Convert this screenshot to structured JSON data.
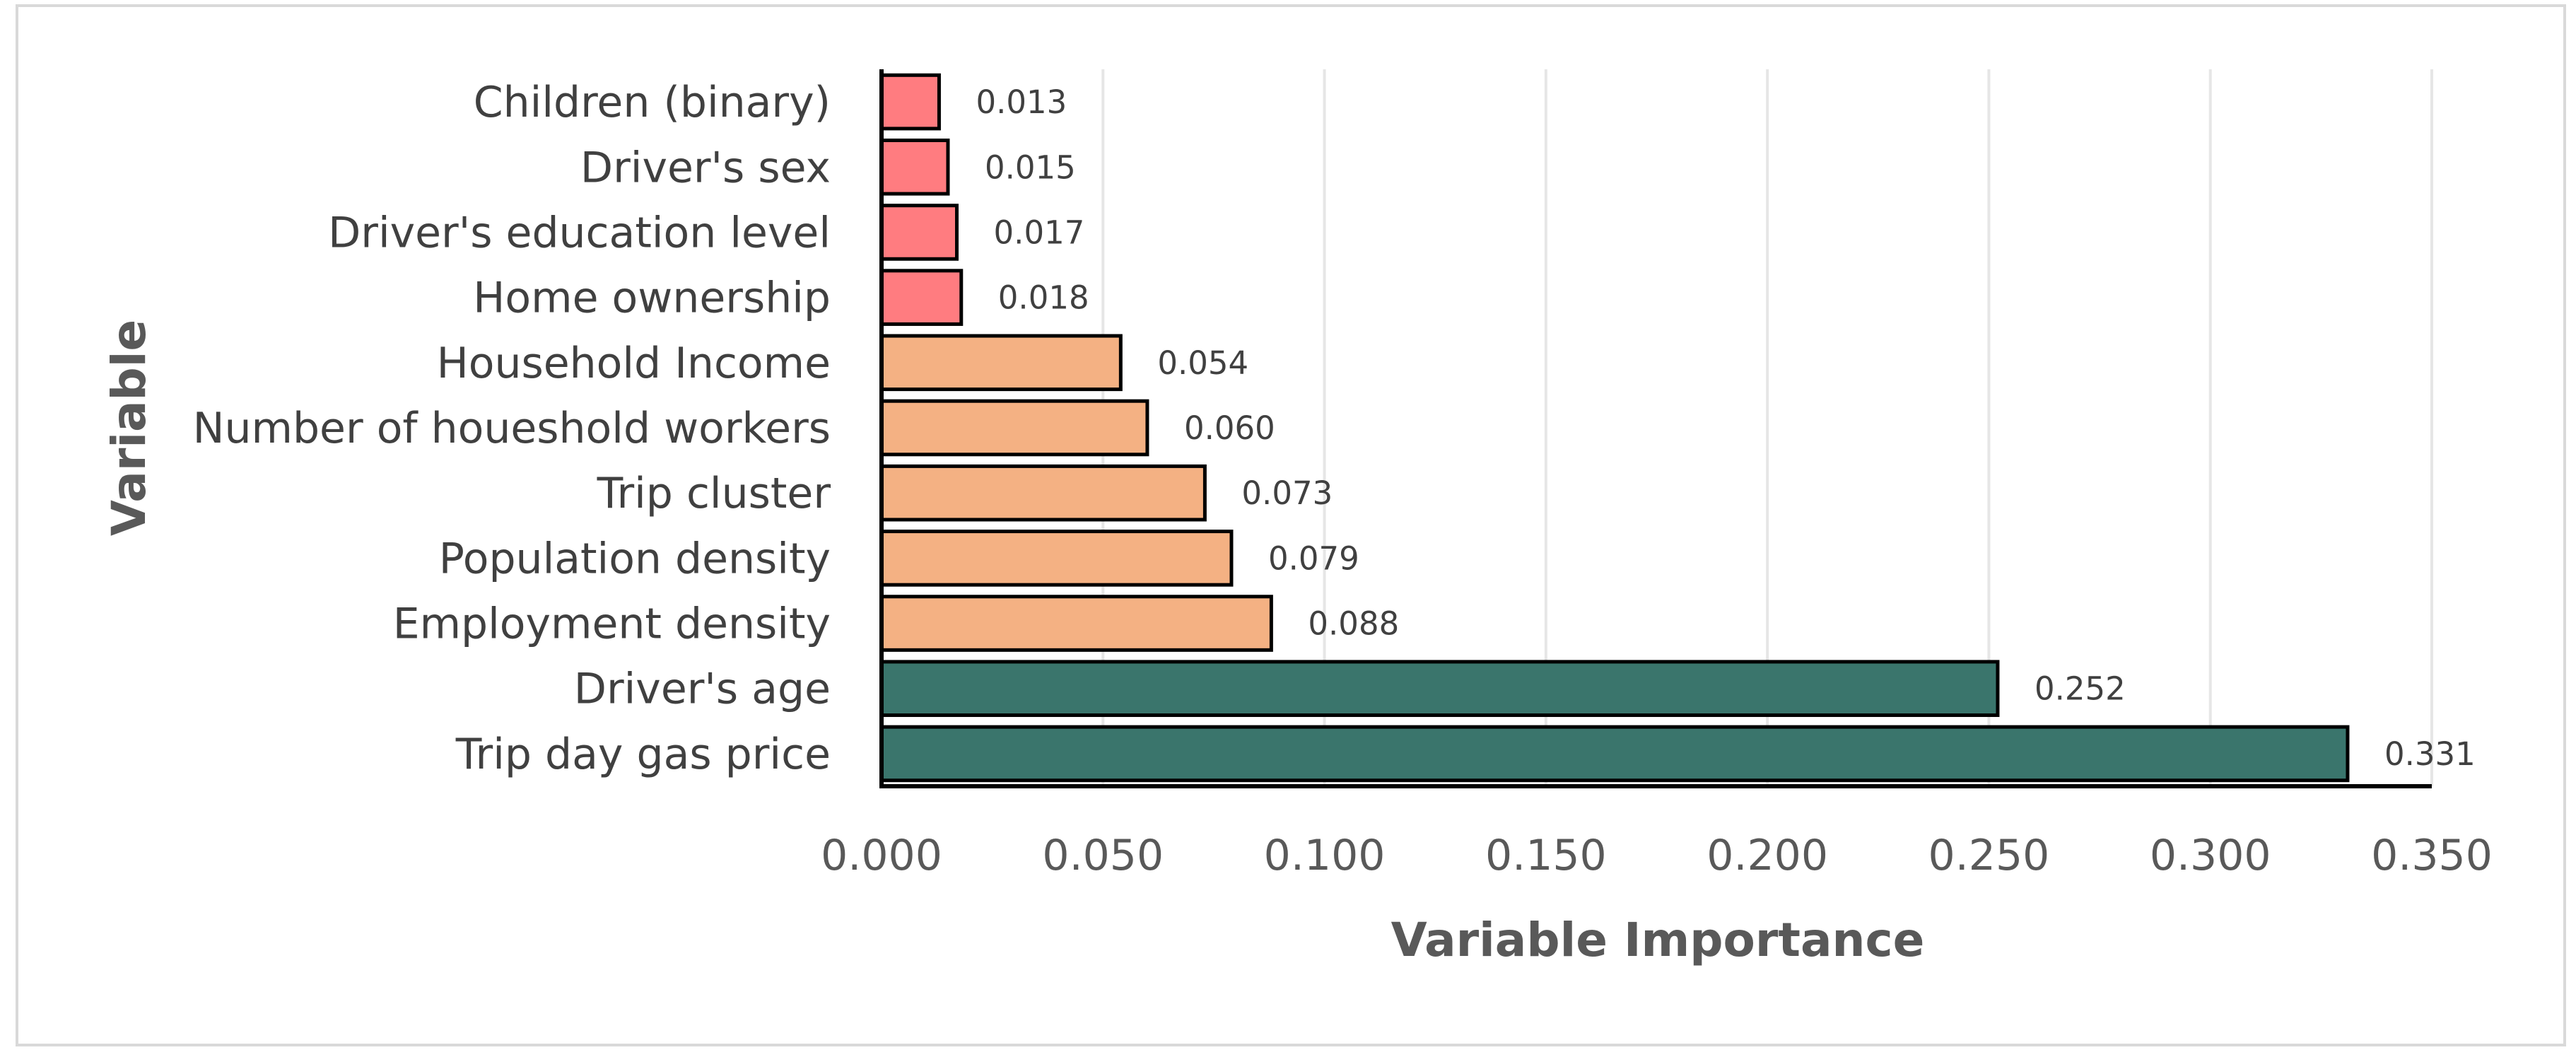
{
  "chart_data": {
    "type": "bar",
    "orientation": "horizontal",
    "title": "",
    "xlabel": "Variable Importance",
    "ylabel": "Variable",
    "categories": [
      "Trip day gas price",
      "Driver's age",
      "Employment density",
      "Population density",
      "Trip cluster",
      "Number of houeshold workers",
      "Household Income",
      "Home ownership",
      "Driver's education level",
      "Driver's sex",
      "Children (binary)"
    ],
    "values": [
      0.331,
      0.252,
      0.088,
      0.079,
      0.073,
      0.06,
      0.054,
      0.018,
      0.017,
      0.015,
      0.013
    ],
    "value_labels": [
      "0.331",
      "0.252",
      "0.088",
      "0.079",
      "0.073",
      "0.060",
      "0.054",
      "0.018",
      "0.017",
      "0.015",
      "0.013"
    ],
    "bar_colors": [
      "#3a756c",
      "#3a756c",
      "#f4b183",
      "#f4b183",
      "#f4b183",
      "#f4b183",
      "#f4b183",
      "#ff7c80",
      "#ff7c80",
      "#ff7c80",
      "#ff7c80"
    ],
    "xlim": [
      0,
      0.35
    ],
    "xticks": [
      0,
      0.05,
      0.1,
      0.15,
      0.2,
      0.25,
      0.3,
      0.35
    ],
    "xtick_labels": [
      "0.000",
      "0.050",
      "0.100",
      "0.150",
      "0.200",
      "0.250",
      "0.300",
      "0.350"
    ],
    "grid": "vertical",
    "legend": "none"
  }
}
